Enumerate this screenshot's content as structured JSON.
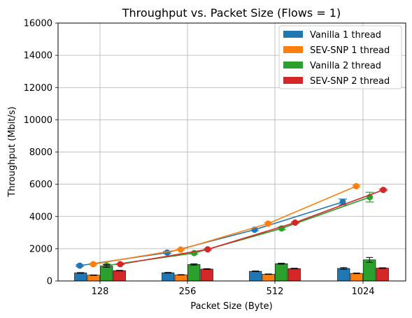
{
  "chart_data": {
    "type": "bar",
    "title": "Throughput vs. Packet Size (Flows = 1)",
    "xlabel": "Packet Size (Byte)",
    "ylabel": "Throughput (Mbit/s)",
    "ylim": [
      0,
      16000
    ],
    "yticks": [
      0,
      2000,
      4000,
      6000,
      8000,
      10000,
      12000,
      14000,
      16000
    ],
    "categories": [
      "128",
      "256",
      "512",
      "1024"
    ],
    "grid": true,
    "legend_position": "top-right",
    "series": [
      {
        "name": "Vanilla 1 thread",
        "color": "#1f77b4",
        "bar_values": [
          500,
          510,
          600,
          780
        ],
        "bar_errors": [
          20,
          20,
          20,
          50
        ],
        "line_points": [
          950,
          1760,
          3180,
          4900
        ],
        "line_errors": [
          50,
          60,
          60,
          180
        ]
      },
      {
        "name": "SEV-SNP 1 thread",
        "color": "#ff7f0e",
        "bar_values": [
          360,
          380,
          420,
          470
        ],
        "bar_errors": [
          15,
          15,
          15,
          20
        ],
        "line_points": [
          1040,
          1950,
          3560,
          5880
        ],
        "line_errors": [
          40,
          40,
          50,
          60
        ]
      },
      {
        "name": "Vanilla 2 thread",
        "color": "#2ca02c",
        "bar_values": [
          930,
          1020,
          1070,
          1310
        ],
        "bar_errors": [
          80,
          40,
          30,
          150
        ],
        "line_points": [
          960,
          1730,
          3260,
          5200
        ],
        "line_errors": [
          80,
          60,
          80,
          300
        ]
      },
      {
        "name": "SEV-SNP 2 thread",
        "color": "#d62728",
        "bar_values": [
          640,
          740,
          770,
          800
        ],
        "bar_errors": [
          20,
          20,
          20,
          20
        ],
        "line_points": [
          1040,
          1960,
          3620,
          5650
        ],
        "line_errors": [
          30,
          40,
          40,
          50
        ]
      }
    ]
  }
}
